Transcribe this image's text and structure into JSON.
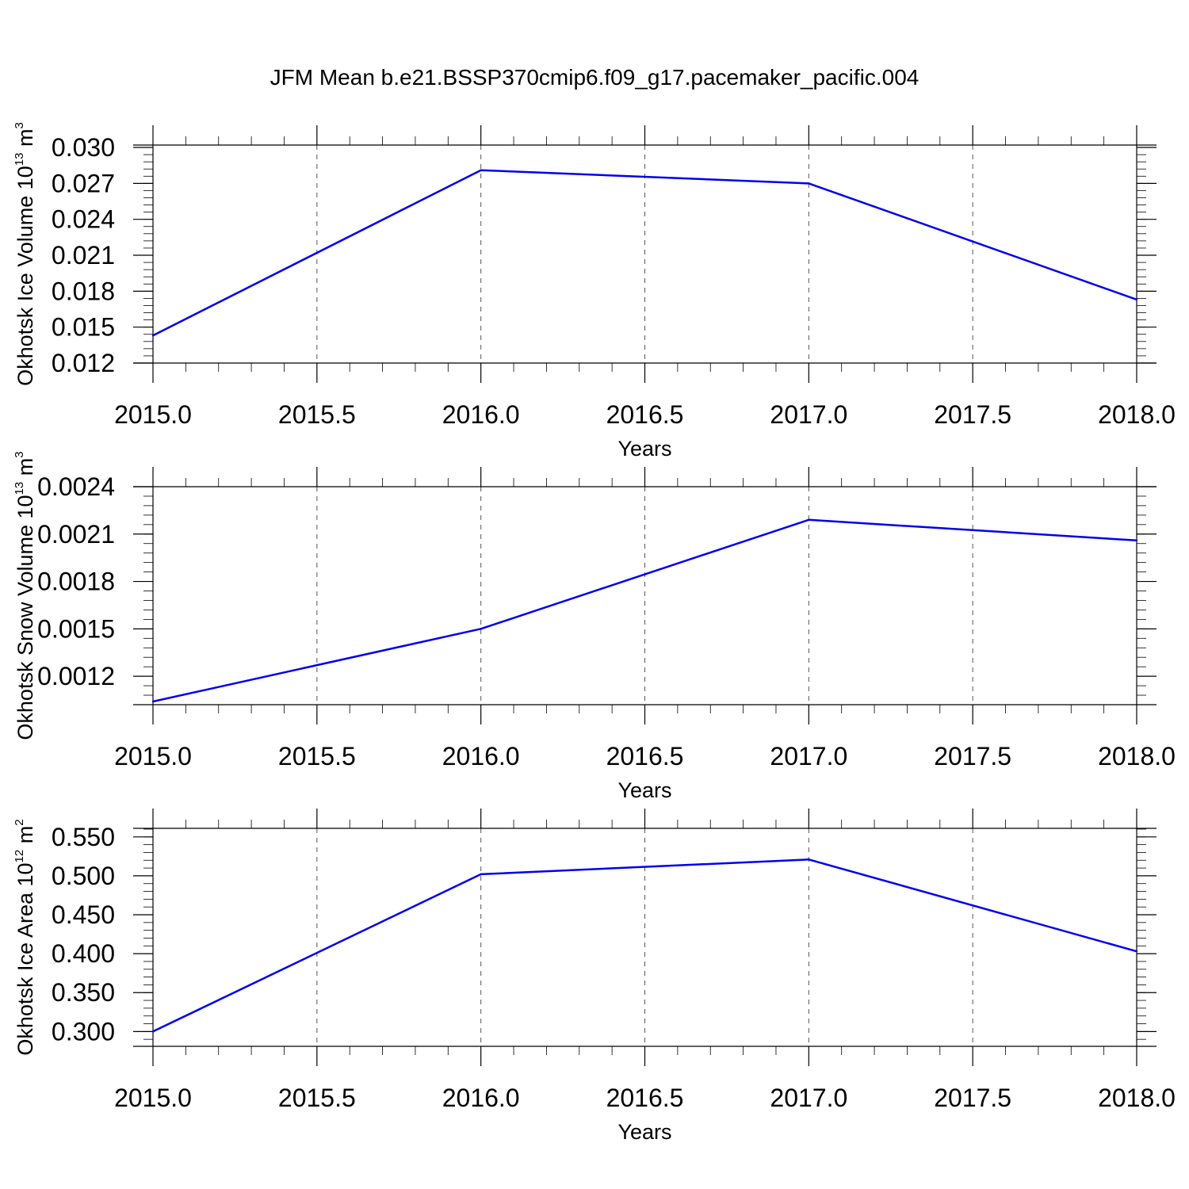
{
  "title": "JFM Mean b.e21.BSSP370cmip6.f09_g17.pacemaker_pacific.004",
  "chart_data": [
    {
      "type": "line",
      "x": [
        2015,
        2016,
        2017,
        2018
      ],
      "values": [
        0.0143,
        0.0281,
        0.027,
        0.0173
      ],
      "xlabel": "Years",
      "ylabel_main": "Okhotsk Ice Volume 10",
      "ylabel_exp": "13",
      "ylabel_unit": " m",
      "ylabel_unit_exp": "3",
      "xlim": [
        2015,
        2018
      ],
      "ylim": [
        0.012,
        0.0302
      ],
      "xticks": [
        2015.0,
        2015.5,
        2016.0,
        2016.5,
        2017.0,
        2017.5,
        2018.0
      ],
      "xtick_labels": [
        "2015.0",
        "2015.5",
        "2016.0",
        "2016.5",
        "2017.0",
        "2017.5",
        "2018.0"
      ],
      "yticks": [
        0.012,
        0.015,
        0.018,
        0.021,
        0.024,
        0.027,
        0.03
      ],
      "ytick_labels": [
        "0.012",
        "0.015",
        "0.018",
        "0.021",
        "0.024",
        "0.027",
        "0.030"
      ],
      "yminor_step": 0.0006,
      "grid": "x-dashed",
      "color": "#0000ee"
    },
    {
      "type": "line",
      "x": [
        2015,
        2016,
        2017,
        2018
      ],
      "values": [
        0.00104,
        0.0015,
        0.00219,
        0.00206
      ],
      "xlabel": "Years",
      "ylabel_main": "Okhotsk Snow Volume 10",
      "ylabel_exp": "13",
      "ylabel_unit": " m",
      "ylabel_unit_exp": "3",
      "xlim": [
        2015,
        2018
      ],
      "ylim": [
        0.00102,
        0.0024
      ],
      "xticks": [
        2015.0,
        2015.5,
        2016.0,
        2016.5,
        2017.0,
        2017.5,
        2018.0
      ],
      "xtick_labels": [
        "2015.0",
        "2015.5",
        "2016.0",
        "2016.5",
        "2017.0",
        "2017.5",
        "2018.0"
      ],
      "yticks": [
        0.0012,
        0.0015,
        0.0018,
        0.0021,
        0.0024
      ],
      "ytick_labels": [
        "0.0012",
        "0.0015",
        "0.0018",
        "0.0021",
        "0.0024"
      ],
      "yminor_step": 6e-05,
      "grid": "x-dashed",
      "color": "#0000ee"
    },
    {
      "type": "line",
      "x": [
        2015,
        2016,
        2017,
        2018
      ],
      "values": [
        0.3,
        0.502,
        0.521,
        0.403
      ],
      "xlabel": "Years",
      "ylabel_main": "Okhotsk Ice Area 10",
      "ylabel_exp": "12",
      "ylabel_unit": " m",
      "ylabel_unit_exp": "2",
      "xlim": [
        2015,
        2018
      ],
      "ylim": [
        0.281,
        0.561
      ],
      "xticks": [
        2015.0,
        2015.5,
        2016.0,
        2016.5,
        2017.0,
        2017.5,
        2018.0
      ],
      "xtick_labels": [
        "2015.0",
        "2015.5",
        "2016.0",
        "2016.5",
        "2017.0",
        "2017.5",
        "2018.0"
      ],
      "yticks": [
        0.3,
        0.35,
        0.4,
        0.45,
        0.5,
        0.55
      ],
      "ytick_labels": [
        "0.300",
        "0.350",
        "0.400",
        "0.450",
        "0.500",
        "0.550"
      ],
      "yminor_step": 0.01,
      "grid": "x-dashed",
      "color": "#0000ee"
    }
  ]
}
